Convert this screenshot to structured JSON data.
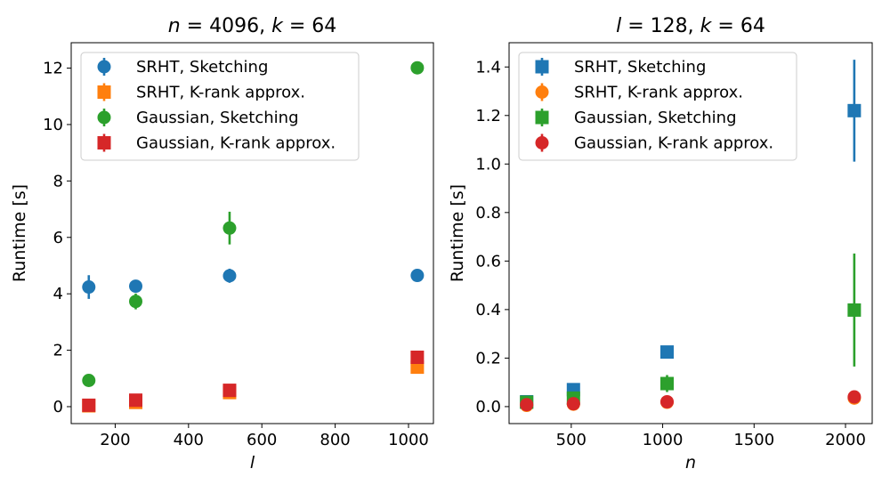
{
  "chart_data": [
    {
      "type": "scatter",
      "title_parts": [
        {
          "text": "n",
          "italic": true
        },
        {
          "text": " = 4096, ",
          "italic": false
        },
        {
          "text": "k",
          "italic": true
        },
        {
          "text": " = 64",
          "italic": false
        }
      ],
      "xlabel": "l",
      "ylabel": "Runtime [s]",
      "xlim": [
        80,
        1068
      ],
      "ylim": [
        -0.6,
        12.9
      ],
      "xticks": [
        200,
        400,
        600,
        800,
        1000
      ],
      "yticks": [
        0,
        2,
        4,
        6,
        8,
        10,
        12
      ],
      "legend_position": "top-left",
      "series": [
        {
          "name": "SRHT, Sketching",
          "color": "#1f77b4",
          "marker": "circle",
          "points": [
            {
              "x": 128,
              "y": 4.24,
              "err": 0.42
            },
            {
              "x": 256,
              "y": 4.27,
              "err": 0.1
            },
            {
              "x": 512,
              "y": 4.64,
              "err": 0.25
            },
            {
              "x": 1024,
              "y": 4.65,
              "err": 0.08
            }
          ]
        },
        {
          "name": "SRHT, K-rank approx.",
          "color": "#ff7f0e",
          "marker": "square",
          "points": [
            {
              "x": 128,
              "y": 0.03,
              "err": 0.02
            },
            {
              "x": 256,
              "y": 0.15,
              "err": 0.03
            },
            {
              "x": 512,
              "y": 0.5,
              "err": 0.04
            },
            {
              "x": 1024,
              "y": 1.4,
              "err": 0.07
            }
          ]
        },
        {
          "name": "Gaussian, Sketching",
          "color": "#2ca02c",
          "marker": "circle",
          "points": [
            {
              "x": 128,
              "y": 0.93,
              "err": 0.08
            },
            {
              "x": 256,
              "y": 3.73,
              "err": 0.28
            },
            {
              "x": 512,
              "y": 6.33,
              "err": 0.58
            },
            {
              "x": 1024,
              "y": 12.01,
              "err": 0.1
            }
          ]
        },
        {
          "name": "Gaussian, K-rank approx.",
          "color": "#d62728",
          "marker": "square",
          "points": [
            {
              "x": 128,
              "y": 0.05,
              "err": 0.02
            },
            {
              "x": 256,
              "y": 0.23,
              "err": 0.03
            },
            {
              "x": 512,
              "y": 0.58,
              "err": 0.04
            },
            {
              "x": 1024,
              "y": 1.75,
              "err": 0.05
            }
          ]
        }
      ]
    },
    {
      "type": "scatter",
      "title_parts": [
        {
          "text": "l",
          "italic": true
        },
        {
          "text": " = 128, ",
          "italic": false
        },
        {
          "text": "k",
          "italic": true
        },
        {
          "text": " = 64",
          "italic": false
        }
      ],
      "xlabel": "n",
      "ylabel": "Runtime [s]",
      "xlim": [
        160,
        2146
      ],
      "ylim": [
        -0.07,
        1.5
      ],
      "xticks": [
        500,
        1000,
        1500,
        2000
      ],
      "yticks": [
        0.0,
        0.2,
        0.4,
        0.6,
        0.8,
        1.0,
        1.2,
        1.4
      ],
      "legend_position": "top-left",
      "series": [
        {
          "name": "SRHT, Sketching",
          "color": "#1f77b4",
          "marker": "square",
          "points": [
            {
              "x": 256,
              "y": 0.02,
              "err": 0.005
            },
            {
              "x": 512,
              "y": 0.07,
              "err": 0.01
            },
            {
              "x": 1024,
              "y": 0.225,
              "err": 0.01
            },
            {
              "x": 2048,
              "y": 1.22,
              "err": 0.21
            }
          ]
        },
        {
          "name": "SRHT, K-rank approx.",
          "color": "#ff7f0e",
          "marker": "circle",
          "points": [
            {
              "x": 256,
              "y": 0.005,
              "err": 0.002
            },
            {
              "x": 512,
              "y": 0.01,
              "err": 0.002
            },
            {
              "x": 1024,
              "y": 0.018,
              "err": 0.003
            },
            {
              "x": 2048,
              "y": 0.035,
              "err": 0.005
            }
          ]
        },
        {
          "name": "Gaussian, Sketching",
          "color": "#2ca02c",
          "marker": "square",
          "points": [
            {
              "x": 256,
              "y": 0.018,
              "err": 0.005
            },
            {
              "x": 512,
              "y": 0.035,
              "err": 0.01
            },
            {
              "x": 1024,
              "y": 0.095,
              "err": 0.035
            },
            {
              "x": 2048,
              "y": 0.398,
              "err": 0.233
            }
          ]
        },
        {
          "name": "Gaussian, K-rank approx.",
          "color": "#d62728",
          "marker": "circle",
          "points": [
            {
              "x": 256,
              "y": 0.008,
              "err": 0.002
            },
            {
              "x": 512,
              "y": 0.012,
              "err": 0.002
            },
            {
              "x": 1024,
              "y": 0.02,
              "err": 0.003
            },
            {
              "x": 2048,
              "y": 0.04,
              "err": 0.005
            }
          ]
        }
      ]
    }
  ]
}
